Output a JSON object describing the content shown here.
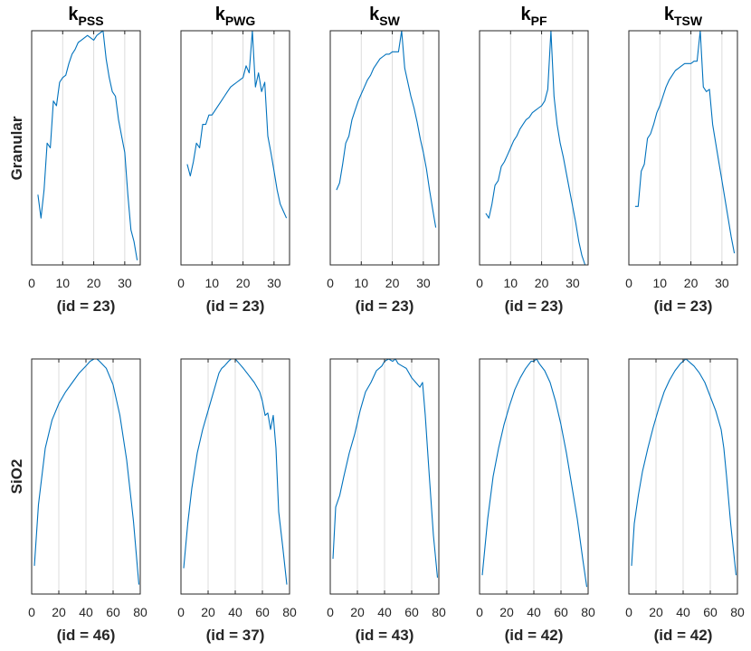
{
  "colors": {
    "line": "#0072bd",
    "axis": "#262626",
    "grid": "#dcdcdc"
  },
  "row_labels": [
    "Granular",
    "SiO2"
  ],
  "chart_data": [
    {
      "type": "line",
      "row": "Granular",
      "title": "k",
      "title_sub": "PSS",
      "xlabel": "(id = 23)",
      "xlim": [
        0,
        35
      ],
      "xticks": [
        0,
        10,
        20,
        30
      ],
      "ylim": [
        0,
        1
      ],
      "x": [
        2,
        3,
        4,
        5,
        6,
        7,
        8,
        9,
        10,
        11,
        12,
        13,
        14,
        15,
        16,
        17,
        18,
        19,
        20,
        21,
        22,
        23,
        24,
        25,
        26,
        27,
        28,
        29,
        30,
        31,
        32,
        33,
        34
      ],
      "y": [
        0.3,
        0.2,
        0.32,
        0.52,
        0.5,
        0.7,
        0.68,
        0.78,
        0.8,
        0.81,
        0.86,
        0.9,
        0.92,
        0.95,
        0.96,
        0.97,
        0.98,
        0.97,
        0.96,
        0.98,
        0.99,
        1.0,
        0.88,
        0.8,
        0.74,
        0.72,
        0.62,
        0.55,
        0.48,
        0.3,
        0.15,
        0.1,
        0.02
      ]
    },
    {
      "type": "line",
      "row": "Granular",
      "title": "k",
      "title_sub": "PWG",
      "xlabel": "(id = 23)",
      "xlim": [
        0,
        35
      ],
      "xticks": [
        0,
        10,
        20,
        30
      ],
      "ylim": [
        0,
        1
      ],
      "x": [
        2,
        3,
        4,
        5,
        6,
        7,
        8,
        9,
        10,
        11,
        12,
        13,
        14,
        15,
        16,
        17,
        18,
        19,
        20,
        21,
        22,
        23,
        24,
        25,
        26,
        27,
        28,
        29,
        30,
        31,
        32,
        33,
        34
      ],
      "y": [
        0.43,
        0.38,
        0.44,
        0.52,
        0.5,
        0.6,
        0.6,
        0.64,
        0.64,
        0.66,
        0.68,
        0.7,
        0.72,
        0.74,
        0.76,
        0.77,
        0.78,
        0.79,
        0.8,
        0.85,
        0.82,
        1.0,
        0.76,
        0.82,
        0.74,
        0.78,
        0.55,
        0.48,
        0.4,
        0.32,
        0.26,
        0.23,
        0.2
      ]
    },
    {
      "type": "line",
      "row": "Granular",
      "title": "k",
      "title_sub": "SW",
      "xlabel": "(id = 23)",
      "xlim": [
        0,
        35
      ],
      "xticks": [
        0,
        10,
        20,
        30
      ],
      "ylim": [
        0,
        1
      ],
      "x": [
        2,
        3,
        4,
        5,
        6,
        7,
        8,
        9,
        10,
        11,
        12,
        13,
        14,
        15,
        16,
        17,
        18,
        19,
        20,
        21,
        22,
        23,
        24,
        25,
        26,
        27,
        28,
        29,
        30,
        31,
        32,
        33,
        34
      ],
      "y": [
        0.32,
        0.35,
        0.43,
        0.52,
        0.55,
        0.62,
        0.66,
        0.7,
        0.73,
        0.76,
        0.79,
        0.81,
        0.84,
        0.86,
        0.88,
        0.89,
        0.9,
        0.9,
        0.91,
        0.91,
        0.91,
        1.0,
        0.84,
        0.78,
        0.72,
        0.67,
        0.61,
        0.54,
        0.48,
        0.41,
        0.32,
        0.24,
        0.16
      ]
    },
    {
      "type": "line",
      "row": "Granular",
      "title": "k",
      "title_sub": "PF",
      "xlabel": "(id = 23)",
      "xlim": [
        0,
        35
      ],
      "xticks": [
        0,
        10,
        20,
        30
      ],
      "ylim": [
        0,
        1
      ],
      "x": [
        2,
        3,
        4,
        5,
        6,
        7,
        8,
        9,
        10,
        11,
        12,
        13,
        14,
        15,
        16,
        17,
        18,
        19,
        20,
        21,
        22,
        23,
        24,
        25,
        26,
        27,
        28,
        29,
        30,
        31,
        32,
        33,
        34
      ],
      "y": [
        0.22,
        0.2,
        0.26,
        0.34,
        0.36,
        0.42,
        0.44,
        0.47,
        0.5,
        0.53,
        0.55,
        0.58,
        0.6,
        0.62,
        0.63,
        0.65,
        0.66,
        0.67,
        0.68,
        0.7,
        0.75,
        1.0,
        0.72,
        0.6,
        0.52,
        0.46,
        0.39,
        0.32,
        0.25,
        0.18,
        0.1,
        0.04,
        0.0
      ]
    },
    {
      "type": "line",
      "row": "Granular",
      "title": "k",
      "title_sub": "TSW",
      "xlabel": "(id = 23)",
      "xlim": [
        0,
        35
      ],
      "xticks": [
        0,
        10,
        20,
        30
      ],
      "ylim": [
        0,
        1
      ],
      "x": [
        2,
        3,
        4,
        5,
        6,
        7,
        8,
        9,
        10,
        11,
        12,
        13,
        14,
        15,
        16,
        17,
        18,
        19,
        20,
        21,
        22,
        23,
        24,
        25,
        26,
        27,
        28,
        29,
        30,
        31,
        32,
        33,
        34
      ],
      "y": [
        0.25,
        0.25,
        0.4,
        0.43,
        0.54,
        0.56,
        0.6,
        0.65,
        0.68,
        0.72,
        0.76,
        0.79,
        0.81,
        0.83,
        0.84,
        0.85,
        0.86,
        0.86,
        0.86,
        0.87,
        0.87,
        1.0,
        0.76,
        0.74,
        0.75,
        0.6,
        0.52,
        0.44,
        0.36,
        0.28,
        0.2,
        0.12,
        0.05
      ]
    },
    {
      "type": "line",
      "row": "SiO2",
      "title": "",
      "title_sub": "",
      "xlabel": "(id = 46)",
      "xlim": [
        0,
        80
      ],
      "xticks": [
        0,
        20,
        40,
        60,
        80
      ],
      "ylim": [
        0,
        1
      ],
      "x": [
        2,
        5,
        10,
        15,
        20,
        25,
        30,
        35,
        40,
        43,
        46,
        48,
        50,
        55,
        60,
        65,
        70,
        75,
        79
      ],
      "y": [
        0.12,
        0.38,
        0.62,
        0.74,
        0.81,
        0.86,
        0.9,
        0.94,
        0.97,
        0.99,
        1.0,
        1.0,
        0.99,
        0.96,
        0.89,
        0.76,
        0.57,
        0.31,
        0.04
      ]
    },
    {
      "type": "line",
      "row": "SiO2",
      "title": "",
      "title_sub": "",
      "xlabel": "(id = 37)",
      "xlim": [
        0,
        80
      ],
      "xticks": [
        0,
        20,
        40,
        60,
        80
      ],
      "ylim": [
        0,
        1
      ],
      "x": [
        2,
        5,
        8,
        12,
        16,
        20,
        24,
        26,
        28,
        30,
        32,
        35,
        37,
        40,
        43,
        46,
        50,
        54,
        58,
        60,
        62,
        64,
        66,
        68,
        70,
        72,
        75,
        78
      ],
      "y": [
        0.11,
        0.3,
        0.45,
        0.6,
        0.7,
        0.78,
        0.86,
        0.9,
        0.94,
        0.96,
        0.97,
        0.99,
        1.0,
        1.0,
        0.98,
        0.96,
        0.93,
        0.9,
        0.86,
        0.82,
        0.76,
        0.77,
        0.7,
        0.76,
        0.62,
        0.35,
        0.2,
        0.04
      ]
    },
    {
      "type": "line",
      "row": "SiO2",
      "title": "",
      "title_sub": "",
      "xlabel": "(id = 43)",
      "xlim": [
        0,
        80
      ],
      "xticks": [
        0,
        20,
        40,
        60,
        80
      ],
      "ylim": [
        0,
        1
      ],
      "x": [
        2,
        4,
        7,
        10,
        14,
        18,
        22,
        26,
        30,
        34,
        38,
        40,
        43,
        46,
        48,
        50,
        53,
        56,
        60,
        63,
        66,
        68,
        70,
        73,
        76,
        79
      ],
      "y": [
        0.15,
        0.37,
        0.42,
        0.5,
        0.6,
        0.68,
        0.78,
        0.86,
        0.9,
        0.95,
        0.97,
        0.99,
        1.0,
        0.99,
        1.0,
        0.98,
        0.97,
        0.96,
        0.92,
        0.9,
        0.88,
        0.9,
        0.76,
        0.5,
        0.25,
        0.07
      ]
    },
    {
      "type": "line",
      "row": "SiO2",
      "title": "",
      "title_sub": "",
      "xlabel": "(id = 42)",
      "xlim": [
        0,
        80
      ],
      "xticks": [
        0,
        20,
        40,
        60,
        80
      ],
      "ylim": [
        0,
        1
      ],
      "x": [
        2,
        6,
        10,
        14,
        18,
        22,
        26,
        30,
        34,
        38,
        40,
        42,
        44,
        48,
        52,
        56,
        60,
        64,
        68,
        72,
        76,
        79
      ],
      "y": [
        0.08,
        0.32,
        0.5,
        0.62,
        0.72,
        0.8,
        0.87,
        0.92,
        0.96,
        0.99,
        0.99,
        1.0,
        0.98,
        0.95,
        0.9,
        0.82,
        0.72,
        0.6,
        0.46,
        0.32,
        0.15,
        0.03
      ]
    },
    {
      "type": "line",
      "row": "SiO2",
      "title": "",
      "title_sub": "",
      "xlabel": "(id = 42)",
      "xlim": [
        0,
        80
      ],
      "xticks": [
        0,
        20,
        40,
        60,
        80
      ],
      "ylim": [
        0,
        1
      ],
      "x": [
        2,
        4,
        7,
        10,
        14,
        18,
        22,
        26,
        30,
        34,
        38,
        40,
        42,
        44,
        48,
        52,
        56,
        60,
        64,
        68,
        70,
        72,
        75,
        79
      ],
      "y": [
        0.12,
        0.3,
        0.42,
        0.52,
        0.62,
        0.71,
        0.79,
        0.86,
        0.91,
        0.95,
        0.98,
        0.99,
        1.0,
        0.99,
        0.97,
        0.94,
        0.9,
        0.84,
        0.78,
        0.7,
        0.62,
        0.5,
        0.3,
        0.08
      ]
    }
  ]
}
